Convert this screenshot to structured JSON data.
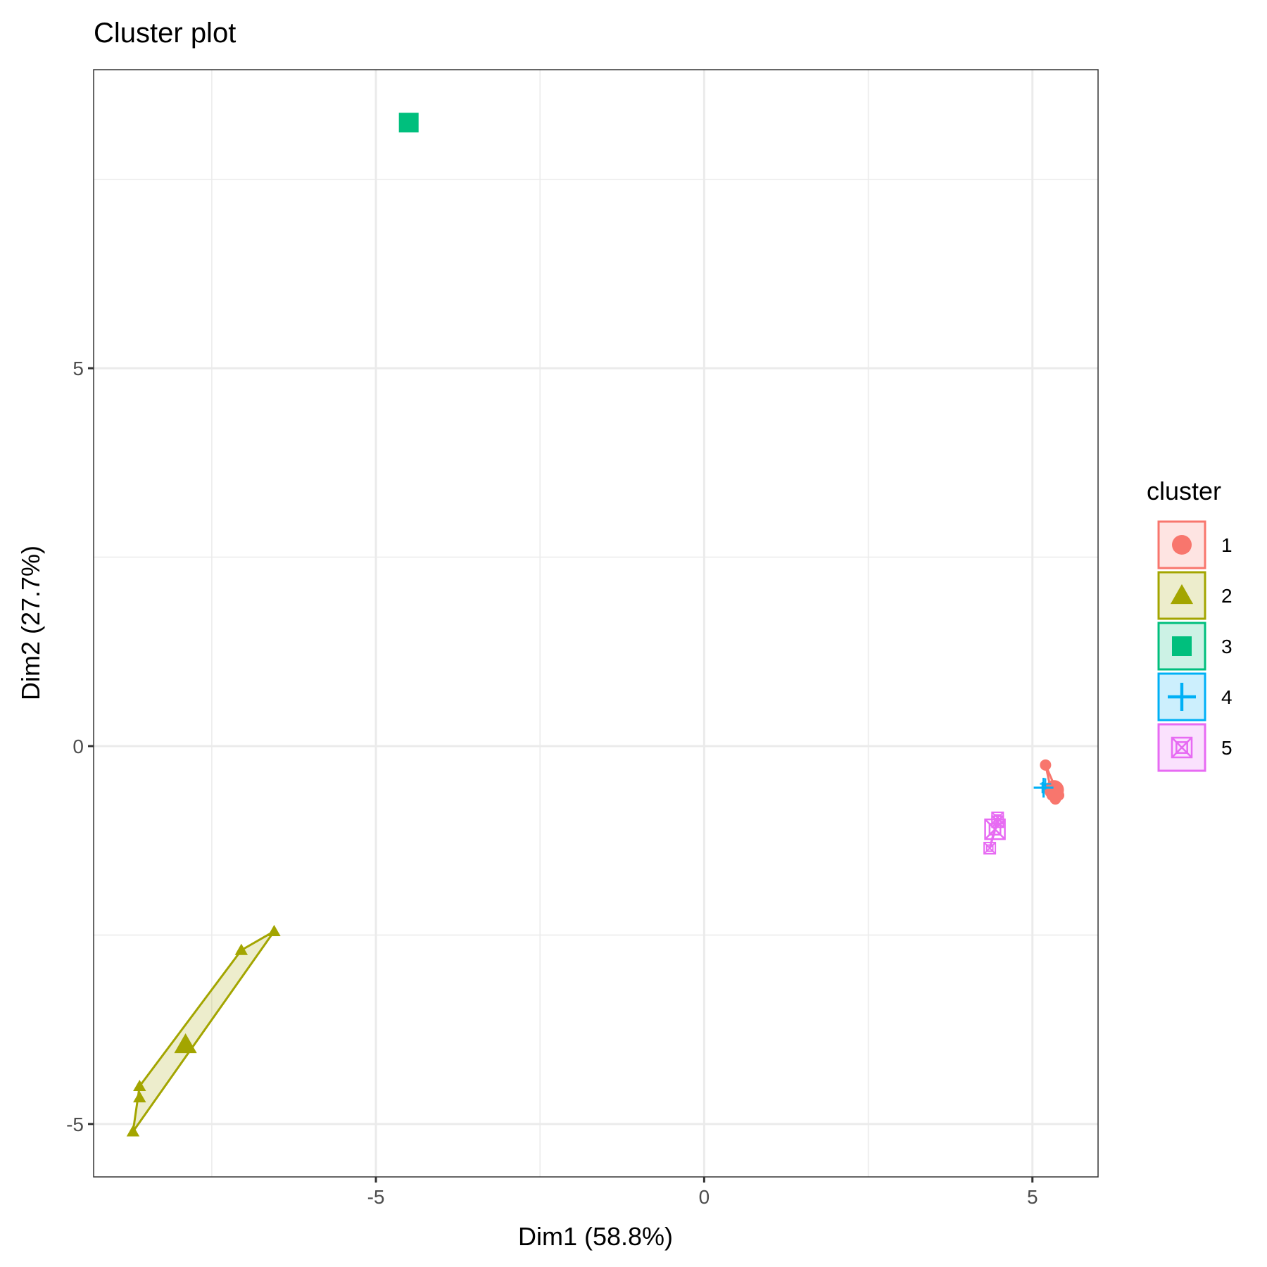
{
  "chart_data": {
    "type": "scatter",
    "title": "Cluster plot",
    "xlabel": "Dim1 (58.8%)",
    "ylabel": "Dim2 (27.7%)",
    "xlim": [
      -9.3,
      6.0
    ],
    "ylim": [
      -5.7,
      8.95
    ],
    "x_ticks": [
      -5,
      0,
      5
    ],
    "y_ticks": [
      -5,
      0,
      5
    ],
    "x_tick_labels": [
      "-5",
      "0",
      "5"
    ],
    "y_tick_labels": [
      "-5",
      "0",
      "5"
    ],
    "grid": true,
    "legend": {
      "title": "cluster",
      "position": "right",
      "entries": [
        {
          "label": "1",
          "shape": "circle",
          "color": "#F8766D"
        },
        {
          "label": "2",
          "shape": "triangle",
          "color": "#A3A500"
        },
        {
          "label": "3",
          "shape": "square",
          "color": "#00BF7D"
        },
        {
          "label": "4",
          "shape": "plus",
          "color": "#00B0F6"
        },
        {
          "label": "5",
          "shape": "square-cross",
          "color": "#E76BF3"
        }
      ]
    },
    "series": [
      {
        "name": "1",
        "shape": "circle",
        "color": "#F8766D",
        "points": [
          [
            5.2,
            -0.25
          ],
          [
            5.3,
            -0.55
          ],
          [
            5.35,
            -0.6
          ],
          [
            5.3,
            -0.65
          ],
          [
            5.4,
            -0.65
          ],
          [
            5.35,
            -0.7
          ]
        ],
        "centroid": [
          5.33,
          -0.58
        ],
        "hull": [
          [
            5.2,
            -0.25
          ],
          [
            5.4,
            -0.65
          ],
          [
            5.35,
            -0.7
          ],
          [
            5.3,
            -0.65
          ]
        ]
      },
      {
        "name": "2",
        "shape": "triangle",
        "color": "#A3A500",
        "points": [
          [
            -6.55,
            -2.45
          ],
          [
            -7.05,
            -2.7
          ],
          [
            -8.6,
            -4.5
          ],
          [
            -8.6,
            -4.65
          ],
          [
            -8.7,
            -5.1
          ]
        ],
        "centroid": [
          -7.9,
          -3.95
        ],
        "hull": [
          [
            -6.55,
            -2.45
          ],
          [
            -7.05,
            -2.7
          ],
          [
            -8.6,
            -4.5
          ],
          [
            -8.7,
            -5.1
          ]
        ]
      },
      {
        "name": "3",
        "shape": "square",
        "color": "#00BF7D",
        "points": [
          [
            -4.5,
            8.25
          ]
        ],
        "centroid": [
          -4.5,
          8.25
        ],
        "hull": []
      },
      {
        "name": "4",
        "shape": "plus",
        "color": "#00B0F6",
        "points": [
          [
            5.15,
            -0.55
          ],
          [
            5.2,
            -0.5
          ]
        ],
        "centroid": [
          5.17,
          -0.55
        ],
        "hull": [
          [
            5.15,
            -0.55
          ],
          [
            5.2,
            -0.5
          ]
        ]
      },
      {
        "name": "5",
        "shape": "square-cross",
        "color": "#E76BF3",
        "points": [
          [
            4.47,
            -0.95
          ],
          [
            4.47,
            -1.0
          ],
          [
            4.35,
            -1.35
          ]
        ],
        "centroid": [
          4.43,
          -1.1
        ],
        "hull": [
          [
            4.47,
            -0.95
          ],
          [
            4.47,
            -1.0
          ],
          [
            4.35,
            -1.35
          ]
        ]
      }
    ]
  }
}
